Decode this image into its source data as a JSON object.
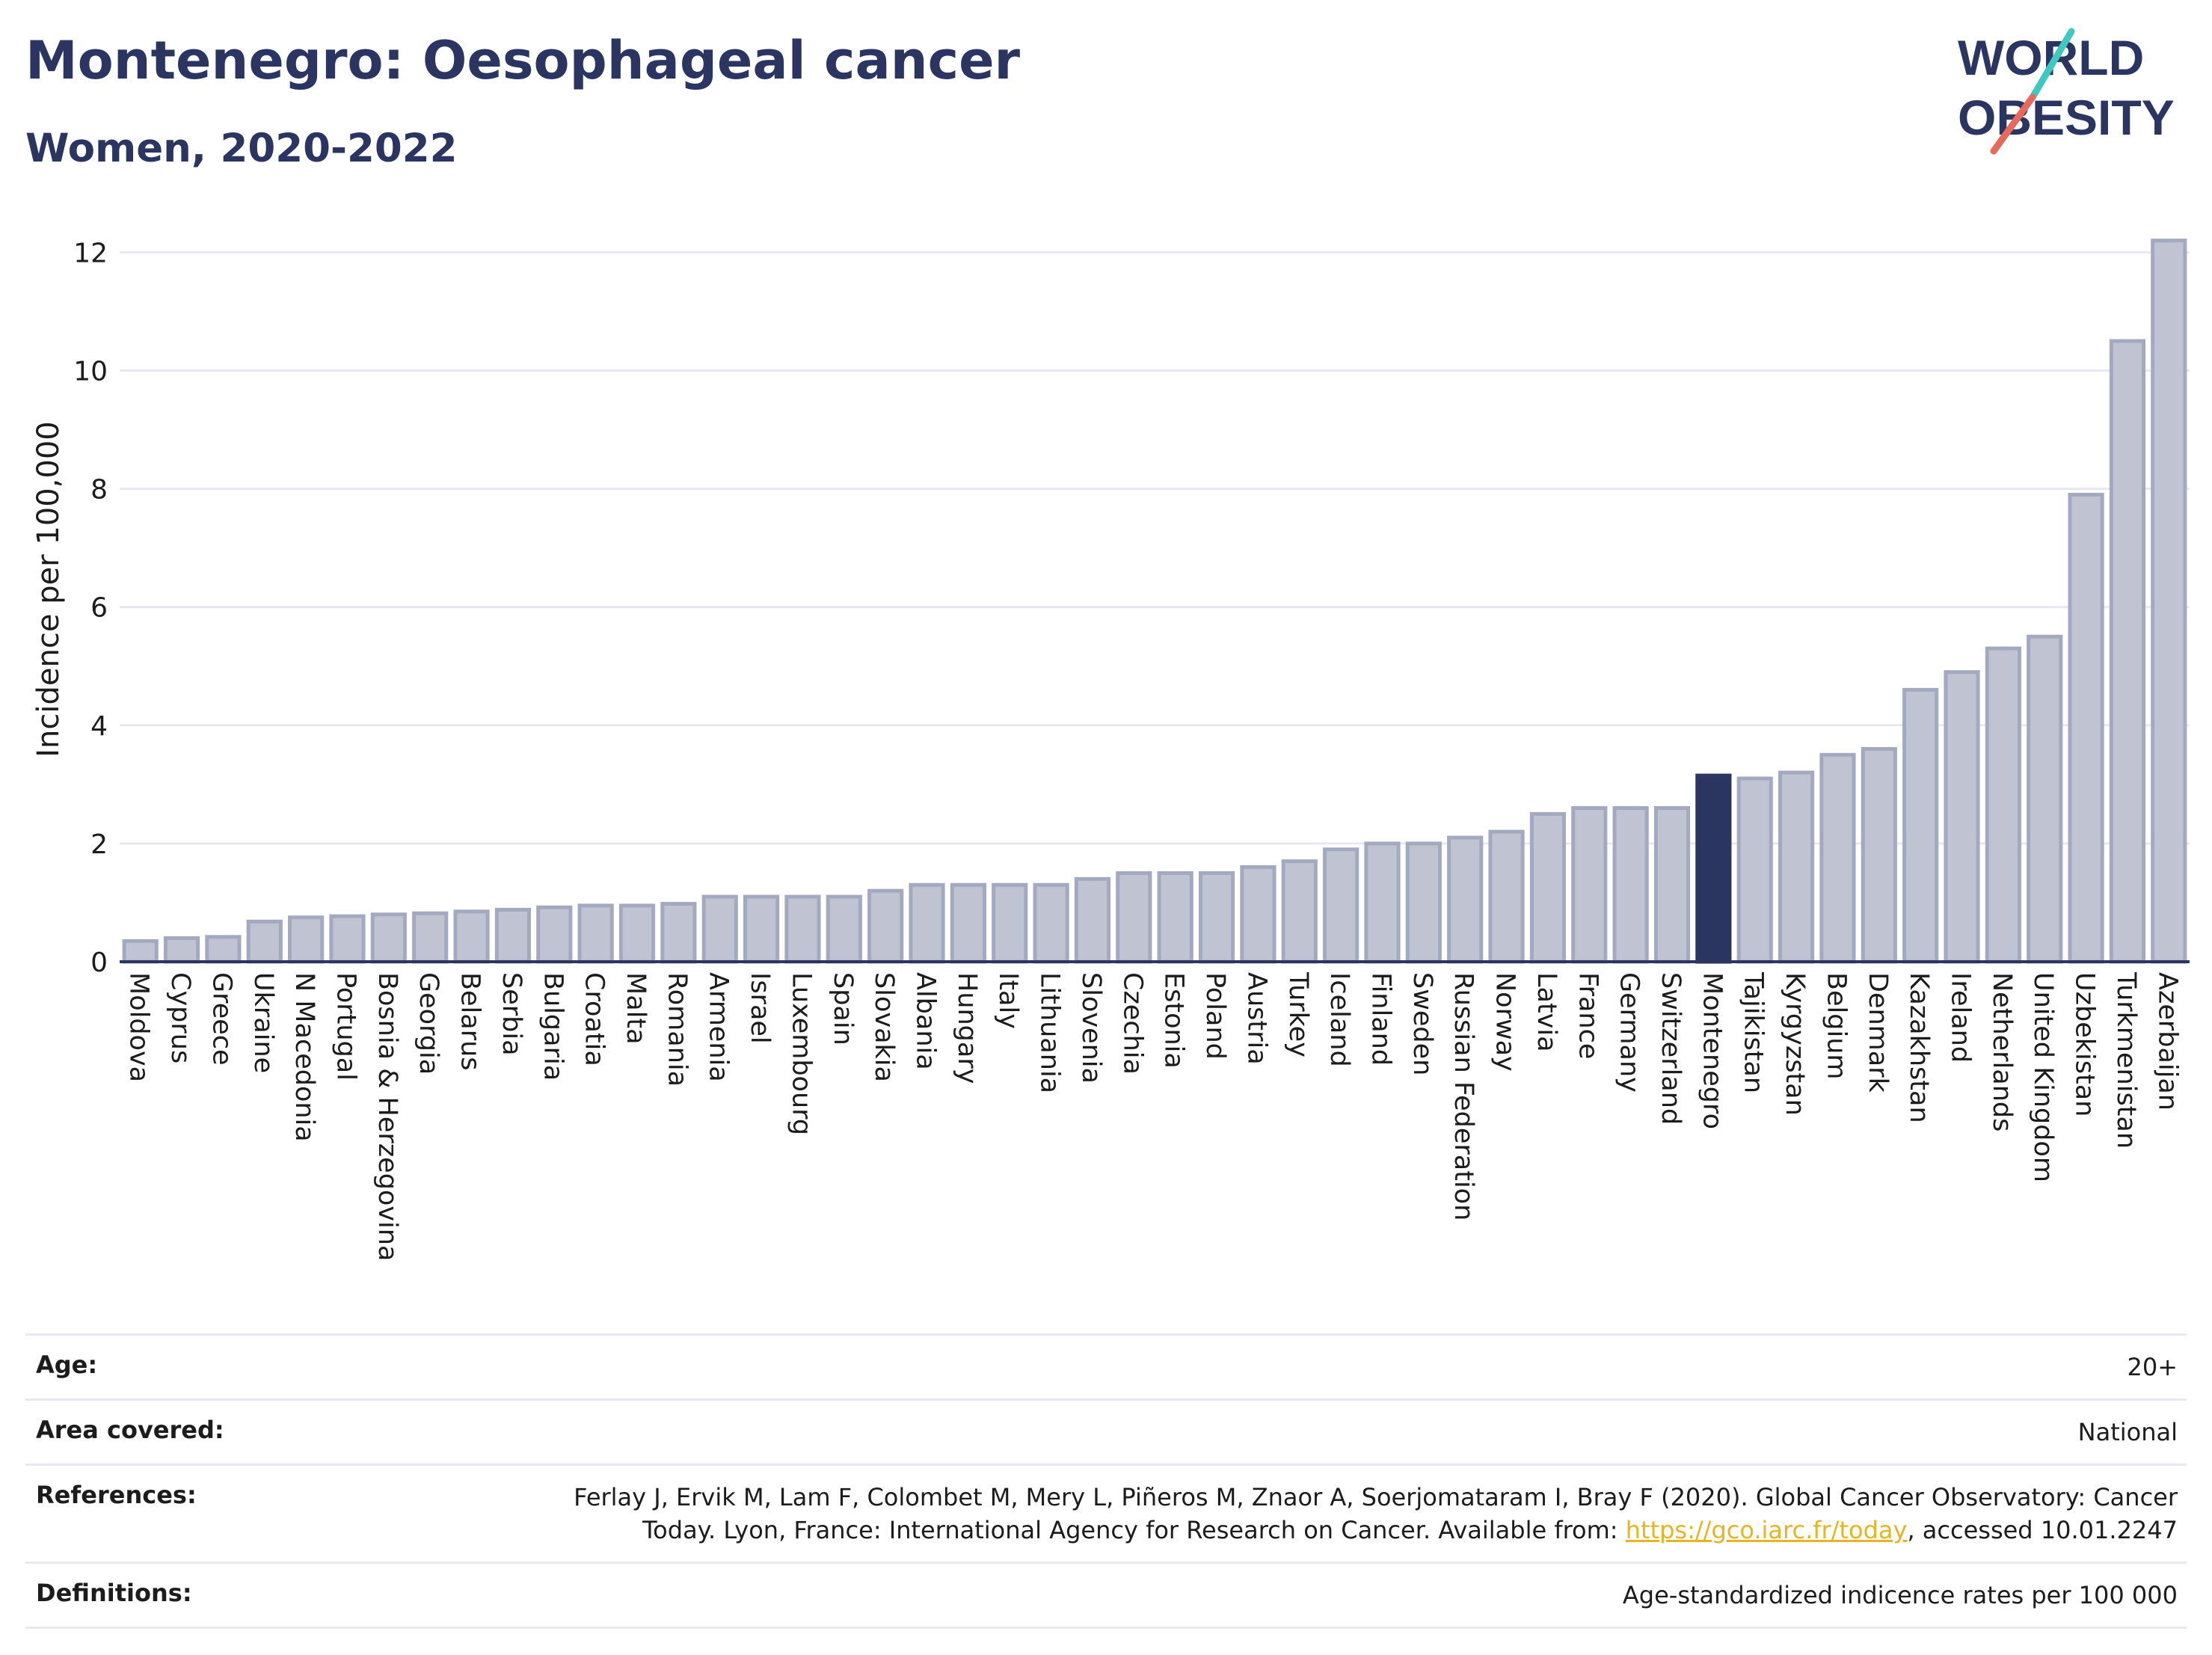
{
  "header": {
    "title": "Montenegro: Oesophageal cancer",
    "subtitle": "Women, 2020-2022"
  },
  "logo": {
    "line1": "WORLD",
    "line2": "OBESITY",
    "accent_colors": [
      "#3ec8c1",
      "#e8685c"
    ]
  },
  "chart_data": {
    "type": "bar",
    "title": "Montenegro: Oesophageal cancer",
    "subtitle": "Women, 2020-2022",
    "ylabel": "Incidence per 100,000",
    "xlabel": "",
    "ylim": [
      0,
      12.6
    ],
    "yticks": [
      0,
      2,
      4,
      6,
      8,
      10,
      12
    ],
    "grid": true,
    "highlight": "Montenegro",
    "colors": {
      "bar": "#c0c4d2",
      "bar_stroke": "#a3a9bf",
      "highlight": "#2a3561",
      "axis": "#2a3561",
      "grid": "#e6e9f0"
    },
    "categories": [
      "Moldova",
      "Cyprus",
      "Greece",
      "Ukraine",
      "N Macedonia",
      "Portugal",
      "Bosnia & Herzegovina",
      "Georgia",
      "Belarus",
      "Serbia",
      "Bulgaria",
      "Croatia",
      "Malta",
      "Romania",
      "Armenia",
      "Israel",
      "Luxembourg",
      "Spain",
      "Slovakia",
      "Albania",
      "Hungary",
      "Italy",
      "Lithuania",
      "Slovenia",
      "Czechia",
      "Estonia",
      "Poland",
      "Austria",
      "Turkey",
      "Iceland",
      "Finland",
      "Sweden",
      "Russian Federation",
      "Norway",
      "Latvia",
      "France",
      "Germany",
      "Switzerland",
      "Montenegro",
      "Tajikistan",
      "Kyrgyzstan",
      "Belgium",
      "Denmark",
      "Kazakhstan",
      "Ireland",
      "Netherlands",
      "United Kingdom",
      "Uzbekistan",
      "Turkmenistan",
      "Azerbaijan"
    ],
    "values": [
      0.35,
      0.4,
      0.42,
      0.68,
      0.75,
      0.77,
      0.8,
      0.82,
      0.85,
      0.88,
      0.92,
      0.95,
      0.95,
      0.98,
      1.1,
      1.1,
      1.1,
      1.1,
      1.2,
      1.3,
      1.3,
      1.3,
      1.3,
      1.4,
      1.5,
      1.5,
      1.5,
      1.6,
      1.7,
      1.9,
      2.0,
      2.0,
      2.1,
      2.2,
      2.5,
      2.6,
      2.6,
      2.6,
      3.15,
      3.1,
      3.2,
      3.5,
      3.6,
      4.6,
      4.9,
      5.3,
      5.5,
      7.9,
      10.5,
      12.2
    ]
  },
  "meta": {
    "age_label": "Age:",
    "age_value": "20+",
    "area_label": "Area covered:",
    "area_value": "National",
    "references_label": "References:",
    "references_line1": "Ferlay J, Ervik M, Lam F, Colombet M, Mery L, Piñeros M, Znaor A, Soerjomataram I, Bray F (2020). Global Cancer Observatory: Cancer",
    "references_line2_prefix": "Today. Lyon, France: International Agency for Research on Cancer. Available from: ",
    "references_link": "https://gco.iarc.fr/today",
    "references_line2_suffix": ", accessed 10.01.2247",
    "definitions_label": "Definitions:",
    "definitions_value": "Age-standardized indicence rates per 100 000"
  }
}
